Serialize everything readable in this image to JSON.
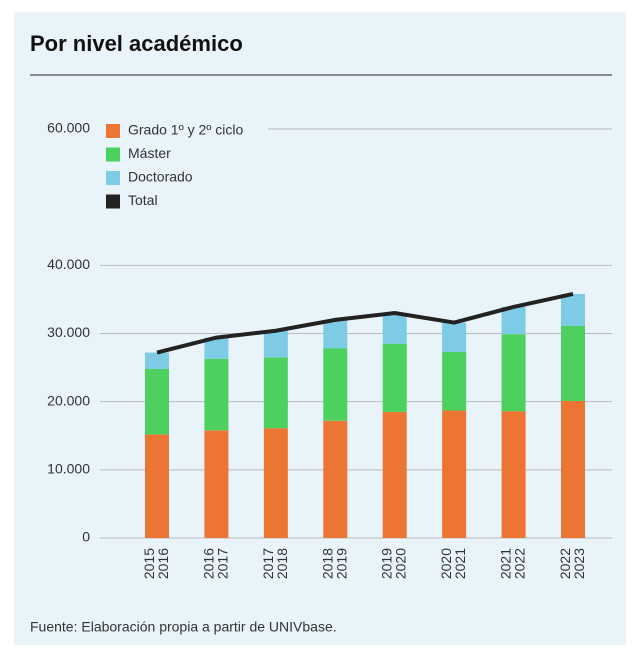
{
  "chart_data": {
    "type": "stacked_bar_line",
    "title": "Por nivel académico",
    "source": "Fuente: Elaboración propia a partir de UNIVbase.",
    "categories": [
      "2015 2016",
      "2016 2017",
      "2017 2018",
      "2018 2019",
      "2019 2020",
      "2020 2021",
      "2021 2022",
      "2022 2023"
    ],
    "series": [
      {
        "name": "Grado 1º y 2º ciclo",
        "color": "#ec7533",
        "values": [
          15200,
          15800,
          16100,
          17200,
          18500,
          18700,
          18600,
          20100
        ]
      },
      {
        "name": "Máster",
        "color": "#4cd15e",
        "values": [
          9600,
          10500,
          10400,
          10600,
          10000,
          8600,
          11300,
          11000
        ]
      },
      {
        "name": "Doctorado",
        "color": "#7ecbe5",
        "values": [
          2400,
          3100,
          3900,
          4200,
          4500,
          4300,
          4000,
          4700
        ]
      },
      {
        "name": "Total",
        "color": "#222222",
        "values": [
          27200,
          29400,
          30400,
          32000,
          33000,
          31600,
          33900,
          35800
        ]
      }
    ],
    "ylim": [
      0,
      60000
    ],
    "yticks": [
      0,
      {
        "value": 10000,
        "label": "10.000"
      },
      {
        "value": 20000,
        "label": "20.000"
      },
      {
        "value": 30000,
        "label": "30.000"
      },
      {
        "value": 40000,
        "label": "40.000"
      },
      {
        "value": 60000,
        "label": "60.000"
      }
    ],
    "grid": true,
    "legend": "top-left"
  }
}
